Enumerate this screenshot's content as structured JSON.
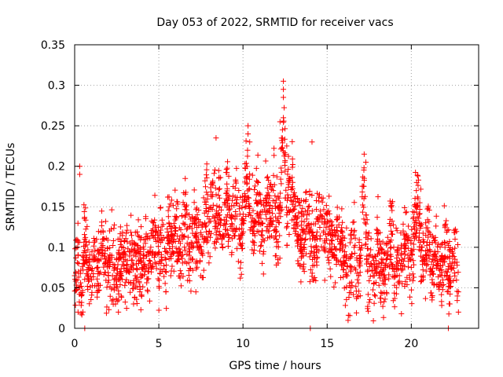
{
  "chart_data": {
    "type": "scatter",
    "title": "Day 053 of 2022, SRMTID for receiver vacs",
    "xlabel": "GPS time / hours",
    "ylabel": "SRMTID / TECUs",
    "xlim": [
      0,
      24
    ],
    "ylim": [
      0,
      0.35
    ],
    "x_ticks": [
      0,
      5,
      10,
      15,
      20
    ],
    "x_tick_labels": [
      "0",
      "5",
      "10",
      "15",
      "20"
    ],
    "y_ticks": [
      0,
      0.05,
      0.1,
      0.15,
      0.2,
      0.25,
      0.3,
      0.35
    ],
    "y_tick_labels": [
      "0",
      "0.05",
      "0.1",
      "0.15",
      "0.2",
      "0.25",
      "0.3",
      "0.35"
    ],
    "grid": true,
    "marker": "plus",
    "color": "#ff0000",
    "series": [
      {
        "name": "SRMTID",
        "x": [
          0.0,
          0.2,
          0.4,
          0.6,
          0.8,
          1.0,
          1.2,
          1.4,
          1.6,
          1.8,
          2.0,
          2.2,
          2.4,
          2.6,
          2.8,
          3.0,
          3.2,
          3.4,
          3.6,
          3.8,
          4.0,
          4.2,
          4.4,
          4.6,
          4.8,
          5.0,
          5.2,
          5.4,
          5.6,
          5.8,
          6.0,
          6.2,
          6.4,
          6.6,
          6.8,
          7.0,
          7.2,
          7.4,
          7.6,
          7.8,
          8.0,
          8.2,
          8.4,
          8.6,
          8.8,
          9.0,
          9.2,
          9.4,
          9.6,
          9.8,
          10.0,
          10.2,
          10.4,
          10.6,
          10.8,
          11.0,
          11.2,
          11.4,
          11.6,
          11.8,
          12.0,
          12.2,
          12.4,
          12.6,
          12.8,
          13.0,
          13.2,
          13.4,
          13.6,
          13.8,
          14.0,
          14.2,
          14.4,
          14.6,
          14.8,
          15.0,
          15.2,
          15.4,
          15.6,
          15.8,
          16.0,
          16.2,
          16.4,
          16.6,
          16.8,
          17.0,
          17.2,
          17.4,
          17.6,
          17.8,
          18.0,
          18.2,
          18.4,
          18.6,
          18.8,
          19.0,
          19.2,
          19.4,
          19.6,
          19.8,
          20.0,
          20.2,
          20.4,
          20.6,
          20.8,
          21.0,
          21.2,
          21.4,
          21.6,
          21.8,
          22.0,
          22.2,
          22.4,
          22.6,
          22.8
        ],
        "y": [
          0.065,
          0.09,
          0.04,
          0.11,
          0.075,
          0.06,
          0.085,
          0.07,
          0.1,
          0.08,
          0.065,
          0.09,
          0.075,
          0.06,
          0.1,
          0.085,
          0.07,
          0.095,
          0.065,
          0.08,
          0.075,
          0.105,
          0.07,
          0.09,
          0.12,
          0.08,
          0.11,
          0.07,
          0.13,
          0.095,
          0.12,
          0.085,
          0.11,
          0.14,
          0.09,
          0.105,
          0.13,
          0.1,
          0.09,
          0.145,
          0.12,
          0.165,
          0.13,
          0.15,
          0.115,
          0.16,
          0.14,
          0.12,
          0.155,
          0.11,
          0.13,
          0.185,
          0.15,
          0.12,
          0.165,
          0.14,
          0.11,
          0.16,
          0.13,
          0.17,
          0.12,
          0.15,
          0.26,
          0.14,
          0.185,
          0.165,
          0.13,
          0.115,
          0.1,
          0.14,
          0.12,
          0.09,
          0.11,
          0.14,
          0.1,
          0.13,
          0.115,
          0.09,
          0.12,
          0.105,
          0.08,
          0.065,
          0.07,
          0.1,
          0.06,
          0.09,
          0.185,
          0.07,
          0.08,
          0.065,
          0.11,
          0.075,
          0.06,
          0.09,
          0.12,
          0.07,
          0.1,
          0.08,
          0.11,
          0.09,
          0.075,
          0.13,
          0.16,
          0.1,
          0.085,
          0.12,
          0.07,
          0.095,
          0.08,
          0.065,
          0.1,
          0.06,
          0.075,
          0.11,
          0.045
        ]
      }
    ],
    "scatter_jitter": 0.038,
    "outliers": [
      {
        "x": 0.3,
        "y": 0.19
      },
      {
        "x": 0.3,
        "y": 0.2
      },
      {
        "x": 0.6,
        "y": 0.0
      },
      {
        "x": 0.2,
        "y": 0.02
      },
      {
        "x": 2.6,
        "y": 0.02
      },
      {
        "x": 3.5,
        "y": 0.03
      },
      {
        "x": 7.2,
        "y": 0.045
      },
      {
        "x": 8.4,
        "y": 0.235
      },
      {
        "x": 10.3,
        "y": 0.25
      },
      {
        "x": 10.3,
        "y": 0.24
      },
      {
        "x": 10.4,
        "y": 0.23
      },
      {
        "x": 12.4,
        "y": 0.305
      },
      {
        "x": 12.4,
        "y": 0.295
      },
      {
        "x": 12.4,
        "y": 0.285
      },
      {
        "x": 12.2,
        "y": 0.255
      },
      {
        "x": 12.6,
        "y": 0.225
      },
      {
        "x": 14.1,
        "y": 0.23
      },
      {
        "x": 14.0,
        "y": 0.0
      },
      {
        "x": 17.2,
        "y": 0.215
      },
      {
        "x": 17.3,
        "y": 0.205
      },
      {
        "x": 20.3,
        "y": 0.17
      },
      {
        "x": 22.2,
        "y": 0.0
      },
      {
        "x": 22.8,
        "y": 0.02
      }
    ]
  }
}
